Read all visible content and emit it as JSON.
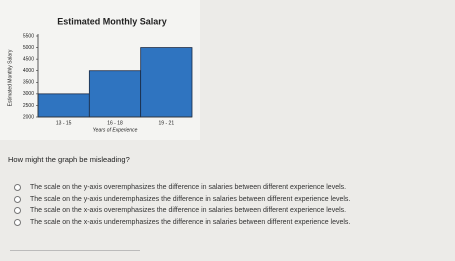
{
  "chart_data": {
    "type": "bar",
    "title": "Estimated Monthly Salary",
    "x_label": "Years of Experience",
    "y_label": "Estimated Monthly Salary",
    "categories": [
      "13 - 15",
      "16 - 18",
      "19 - 21"
    ],
    "values": [
      3000,
      4000,
      5000
    ],
    "color": "#2f74c0",
    "ylim": [
      2000,
      5500
    ],
    "yticks": [
      2000,
      2500,
      3000,
      3500,
      4000,
      4500,
      5000,
      5500
    ]
  },
  "question": "How might the graph be misleading?",
  "options": [
    "The scale on the y-axis overemphasizes the difference in salaries between different experience levels.",
    "The scale on the y-axis underemphasizes the difference in salaries between different experience levels.",
    "The scale on the x-axis overemphasizes the difference in salaries between different experience levels.",
    "The scale on the x-axis underemphasizes the difference in salaries between different experience levels."
  ]
}
